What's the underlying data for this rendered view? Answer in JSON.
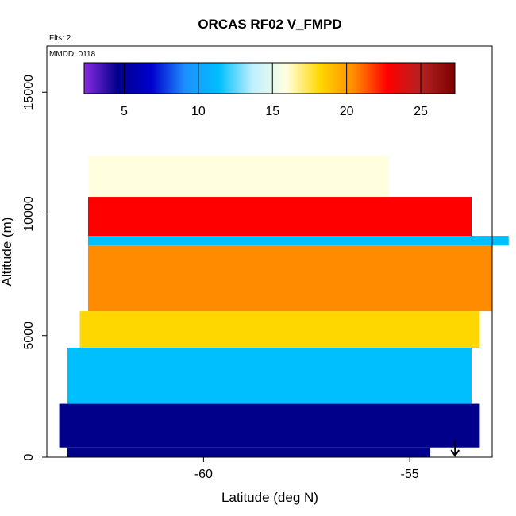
{
  "chart_data": {
    "type": "heatmap",
    "title": "ORCAS RF02 V_FMPD",
    "annotations": {
      "flights": "Flts: 2",
      "date": "MMDD: 0118"
    },
    "xlabel": "Latitude (deg N)",
    "ylabel": "Altitude (m)",
    "xlim": [
      -63.8,
      -53.0
    ],
    "ylim": [
      0,
      16900
    ],
    "x_ticks": [
      -60,
      -55
    ],
    "x_tick_labels": [
      "-60",
      "-55"
    ],
    "y_ticks": [
      0,
      5000,
      10000,
      15000
    ],
    "y_tick_labels": [
      "0",
      "5000",
      "10000",
      "15000"
    ],
    "colorbar": {
      "range": [
        2.3,
        27.3
      ],
      "ticks": [
        5,
        10,
        15,
        20,
        25
      ],
      "tick_labels": [
        "5",
        "10",
        "15",
        "20",
        "25"
      ],
      "colors": [
        "#8a2be2",
        "#00008b",
        "#0000cd",
        "#1e90ff",
        "#00bfff",
        "#bfefff",
        "#ffffe0",
        "#ffd700",
        "#ff8c00",
        "#ff0000",
        "#b22222",
        "#800000"
      ]
    },
    "marker": {
      "x": -53.9,
      "label": "arrow"
    },
    "layers": [
      {
        "alt_min": 0,
        "alt_max": 400,
        "lat_min": -63.3,
        "lat_max": -54.5,
        "value": 4.5
      },
      {
        "alt_min": 400,
        "alt_max": 2200,
        "lat_min": -63.5,
        "lat_max": -53.3,
        "value": 5.5
      },
      {
        "alt_min": 2200,
        "alt_max": 4500,
        "lat_min": -63.3,
        "lat_max": -53.5,
        "value": 10.5
      },
      {
        "alt_min": 4500,
        "alt_max": 6000,
        "lat_min": -63.0,
        "lat_max": -53.3,
        "value": 18.5
      },
      {
        "alt_min": 6000,
        "alt_max": 8700,
        "lat_min": -62.8,
        "lat_max": -53.0,
        "value": 21.5
      },
      {
        "alt_min": 8700,
        "alt_max": 9100,
        "lat_min": -62.8,
        "lat_max": -52.6,
        "value": 10.5
      },
      {
        "alt_min": 9100,
        "alt_max": 10700,
        "lat_min": -62.8,
        "lat_max": -53.5,
        "value": 23.5
      },
      {
        "alt_min": 10700,
        "alt_max": 12400,
        "lat_min": -62.8,
        "lat_max": -55.5,
        "value": 17.0
      }
    ]
  }
}
